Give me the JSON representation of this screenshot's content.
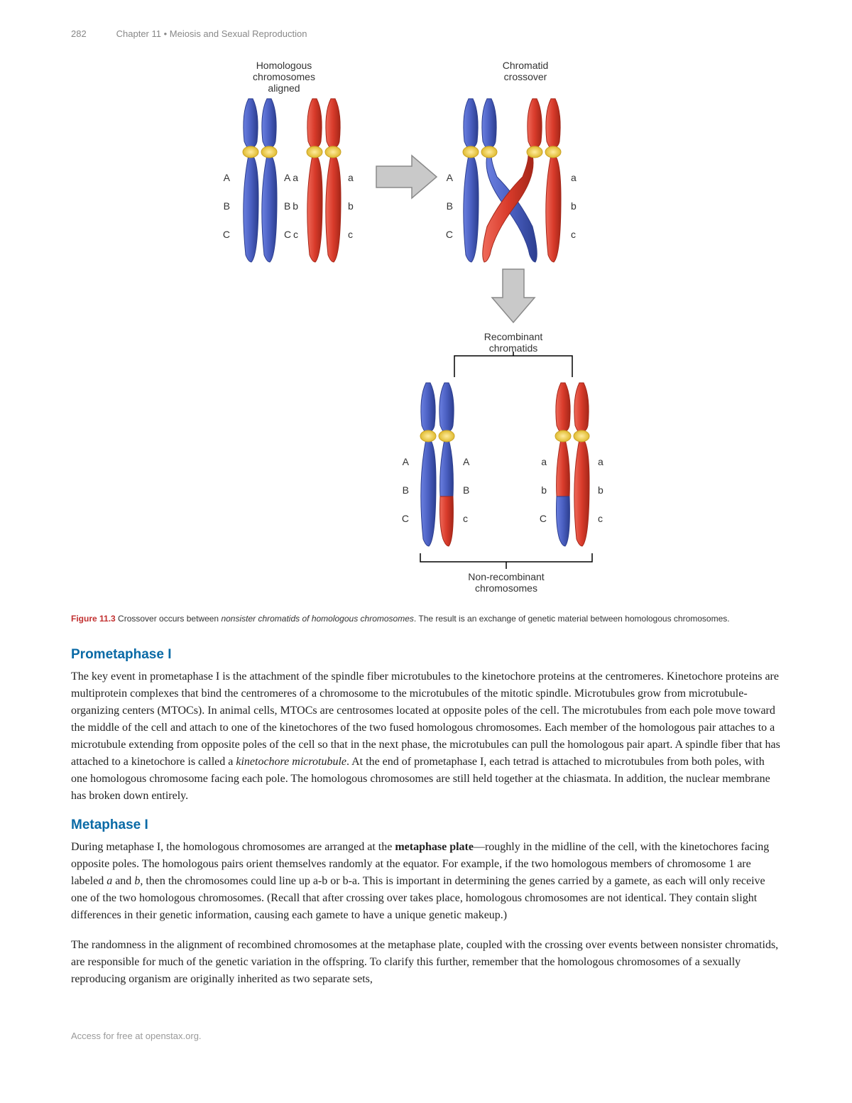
{
  "page": {
    "number": "282",
    "chapter_header": "Chapter 11 • Meiosis and Sexual Reproduction",
    "footer": "Access for free at openstax.org."
  },
  "figure": {
    "label_top_left": "Homologous\nchromosomes\naligned",
    "label_top_right": "Chromatid\ncrossover",
    "label_recombinant": "Recombinant\nchromatids",
    "label_nonrecombinant": "Non-recombinant\nchromosomes",
    "colors": {
      "blue_fill": "#4a5fc1",
      "blue_dark": "#2c3e8f",
      "red_fill": "#d93b2b",
      "red_dark": "#a52618",
      "centromere": "#f2d94e",
      "centromere_stroke": "#c9a227",
      "arrow_fill": "#c9c9c9",
      "arrow_stroke": "#8a8a8a",
      "bracket": "#000000"
    },
    "alleles": {
      "blue": [
        "A",
        "B",
        "C"
      ],
      "red": [
        "a",
        "b",
        "c"
      ]
    }
  },
  "caption": {
    "fig_label": "Figure 11.3",
    "text_1": " Crossover occurs between ",
    "italic": "nonsister chromatids of homologous chromosomes",
    "text_2": ". The result is an exchange of genetic material between homologous chromosomes."
  },
  "sections": [
    {
      "heading": "Prometaphase I",
      "paragraphs": [
        {
          "segments": [
            {
              "t": "The key event in prometaphase I is the attachment of the spindle fiber microtubules to the kinetochore proteins at the centromeres. Kinetochore proteins are multiprotein complexes that bind the centromeres of a chromosome to the microtubules of the mitotic spindle. Microtubules grow from microtubule-organizing centers (MTOCs). In animal cells, MTOCs are centrosomes located at opposite poles of the cell. The microtubules from each pole move toward the middle of the cell and attach to one of the kinetochores of the two fused homologous chromosomes. Each member of the homologous pair attaches to a microtubule extending from opposite poles of the cell so that in the next phase, the microtubules can pull the homologous pair apart. A spindle fiber that has attached to a kinetochore is called a "
            },
            {
              "t": "kinetochore microtubule",
              "italic": true
            },
            {
              "t": ". At the end of prometaphase I, each tetrad is attached to microtubules from both poles, with one homologous chromosome facing each pole. The homologous chromosomes are still held together at the chiasmata. In addition, the nuclear membrane has broken down entirely."
            }
          ]
        }
      ]
    },
    {
      "heading": "Metaphase I",
      "paragraphs": [
        {
          "segments": [
            {
              "t": "During metaphase I, the homologous chromosomes are arranged at the "
            },
            {
              "t": "metaphase plate",
              "bold": true
            },
            {
              "t": "—roughly in the midline of the cell, with the kinetochores facing opposite poles. The homologous pairs orient themselves randomly at the equator. For example, if the two homologous members of chromosome 1 are labeled "
            },
            {
              "t": "a",
              "italic": true
            },
            {
              "t": " and "
            },
            {
              "t": "b",
              "italic": true
            },
            {
              "t": ", then the chromosomes could line up a-b or b-a. This is important in determining the genes carried by a gamete, as each will only receive one of the two homologous chromosomes. (Recall that after crossing over takes place, homologous chromosomes are not identical. They contain slight differences in their genetic information, causing each gamete to have a unique genetic makeup.)"
            }
          ]
        },
        {
          "segments": [
            {
              "t": "The randomness in the alignment of recombined chromosomes at the metaphase plate, coupled with the crossing over events between nonsister chromatids, are responsible for much of the genetic variation in the offspring. To clarify this further, remember that the homologous chromosomes of a sexually reproducing organism are originally inherited as two separate sets,"
            }
          ]
        }
      ]
    }
  ]
}
